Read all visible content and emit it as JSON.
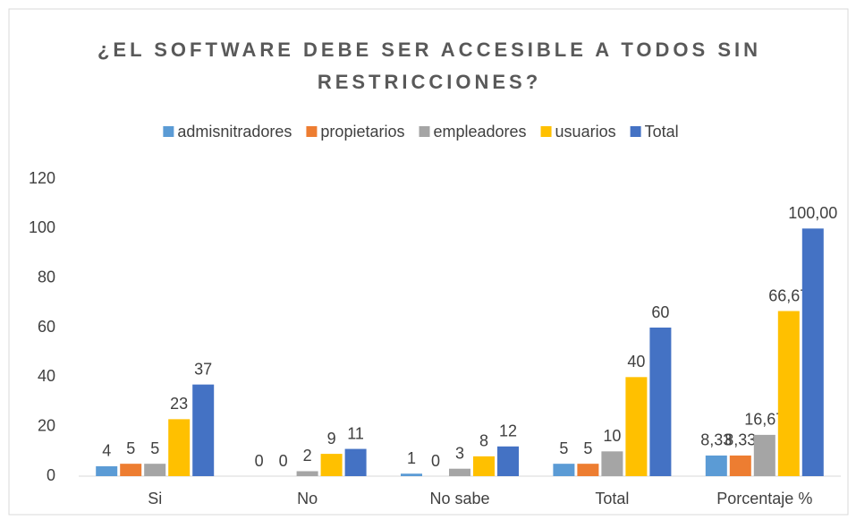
{
  "chart_data": {
    "type": "bar",
    "title": "¿EL SOFTWARE DEBE SER ACCESIBLE A TODOS SIN RESTRICCIONES?",
    "categories": [
      "Si",
      "No",
      "No sabe",
      "Total",
      "Porcentaje %"
    ],
    "series": [
      {
        "name": "admisnitradores",
        "color": "#5b9bd5",
        "values": [
          4,
          0,
          1,
          5,
          8.33
        ],
        "value_labels": [
          "4",
          "0",
          "1",
          "5",
          "8,33"
        ]
      },
      {
        "name": "propietarios",
        "color": "#ed7d31",
        "values": [
          5,
          0,
          0,
          5,
          8.33
        ],
        "value_labels": [
          "5",
          "0",
          "0",
          "5",
          "8,33"
        ]
      },
      {
        "name": "empleadores",
        "color": "#a5a5a5",
        "values": [
          5,
          2,
          3,
          10,
          16.67
        ],
        "value_labels": [
          "5",
          "2",
          "3",
          "10",
          "16,67"
        ]
      },
      {
        "name": "usuarios",
        "color": "#ffc000",
        "values": [
          23,
          9,
          8,
          40,
          66.67
        ],
        "value_labels": [
          "23",
          "9",
          "8",
          "40",
          "66,67"
        ]
      },
      {
        "name": "Total",
        "color": "#4472c4",
        "values": [
          37,
          11,
          12,
          60,
          100
        ],
        "value_labels": [
          "37",
          "11",
          "12",
          "60",
          "100,00"
        ]
      }
    ],
    "ylim": [
      0,
      120
    ],
    "yticks": [
      0,
      20,
      40,
      60,
      80,
      100,
      120
    ],
    "grid": false,
    "legend": "top"
  }
}
